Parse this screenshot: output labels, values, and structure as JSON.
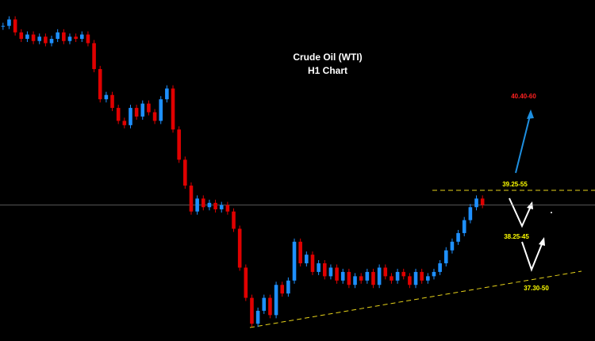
{
  "chart_data": {
    "type": "candlestick",
    "title": "Crude Oil (WTI)",
    "subtitle": "H1 Chart",
    "values": [
      43.2,
      43.35,
      43.05,
      42.9,
      43.0,
      42.85,
      42.95,
      42.8,
      42.9,
      43.05,
      42.85,
      42.95,
      42.9,
      43.0,
      42.8,
      42.2,
      41.5,
      41.6,
      41.3,
      41.0,
      40.9,
      41.3,
      41.1,
      41.4,
      41.2,
      41.0,
      41.5,
      41.75,
      40.8,
      40.1,
      39.5,
      38.9,
      39.2,
      39.0,
      39.1,
      38.95,
      39.05,
      38.9,
      38.5,
      37.6,
      36.9,
      36.3,
      36.6,
      36.9,
      36.5,
      37.2,
      37.0,
      37.3,
      38.2,
      37.7,
      37.9,
      37.5,
      37.7,
      37.4,
      37.6,
      37.3,
      37.5,
      37.2,
      37.4,
      37.3,
      37.5,
      37.2,
      37.6,
      37.4,
      37.3,
      37.5,
      37.4,
      37.2,
      37.5,
      37.3,
      37.4,
      37.5,
      37.7,
      38.0,
      38.2,
      38.4,
      38.7,
      39.0,
      39.2,
      39.05
    ],
    "ylim": [
      35.9,
      43.8
    ],
    "up_color": "#1e90ff",
    "down_color": "#e00000",
    "annotations": [
      {
        "text": "40.40-60",
        "color": "#ff2020"
      },
      {
        "text": "39.25-55",
        "color": "#ffff00"
      },
      {
        "text": "38.25-45",
        "color": "#ffff00"
      },
      {
        "text": "37.30-50",
        "color": "#ffff00"
      }
    ]
  }
}
